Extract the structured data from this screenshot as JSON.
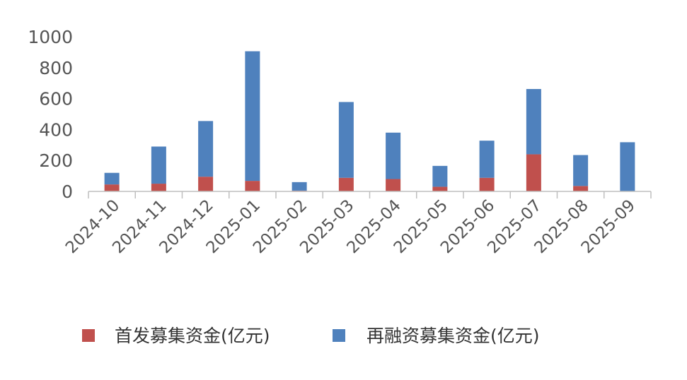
{
  "chart_data": {
    "type": "bar",
    "stacked": true,
    "categories": [
      "2024-10",
      "2024-11",
      "2024-12",
      "2025-01",
      "2025-02",
      "2025-03",
      "2025-04",
      "2025-05",
      "2025-06",
      "2025-07",
      "2025-08",
      "2025-09"
    ],
    "series": [
      {
        "name": "首发募集资金(亿元)",
        "color": "#c0504d",
        "values": [
          45,
          50,
          95,
          68,
          5,
          88,
          80,
          30,
          88,
          240,
          35,
          0
        ]
      },
      {
        "name": "再融资募集资金(亿元)",
        "color": "#4f81bd",
        "values": [
          75,
          240,
          360,
          838,
          55,
          490,
          300,
          135,
          240,
          422,
          200,
          318
        ]
      }
    ],
    "yticks": [
      0,
      200,
      400,
      600,
      800,
      1000
    ],
    "ylim": [
      0,
      1000
    ],
    "grid": false,
    "legend_position": "bottom",
    "title": "",
    "xlabel": "",
    "ylabel": ""
  }
}
